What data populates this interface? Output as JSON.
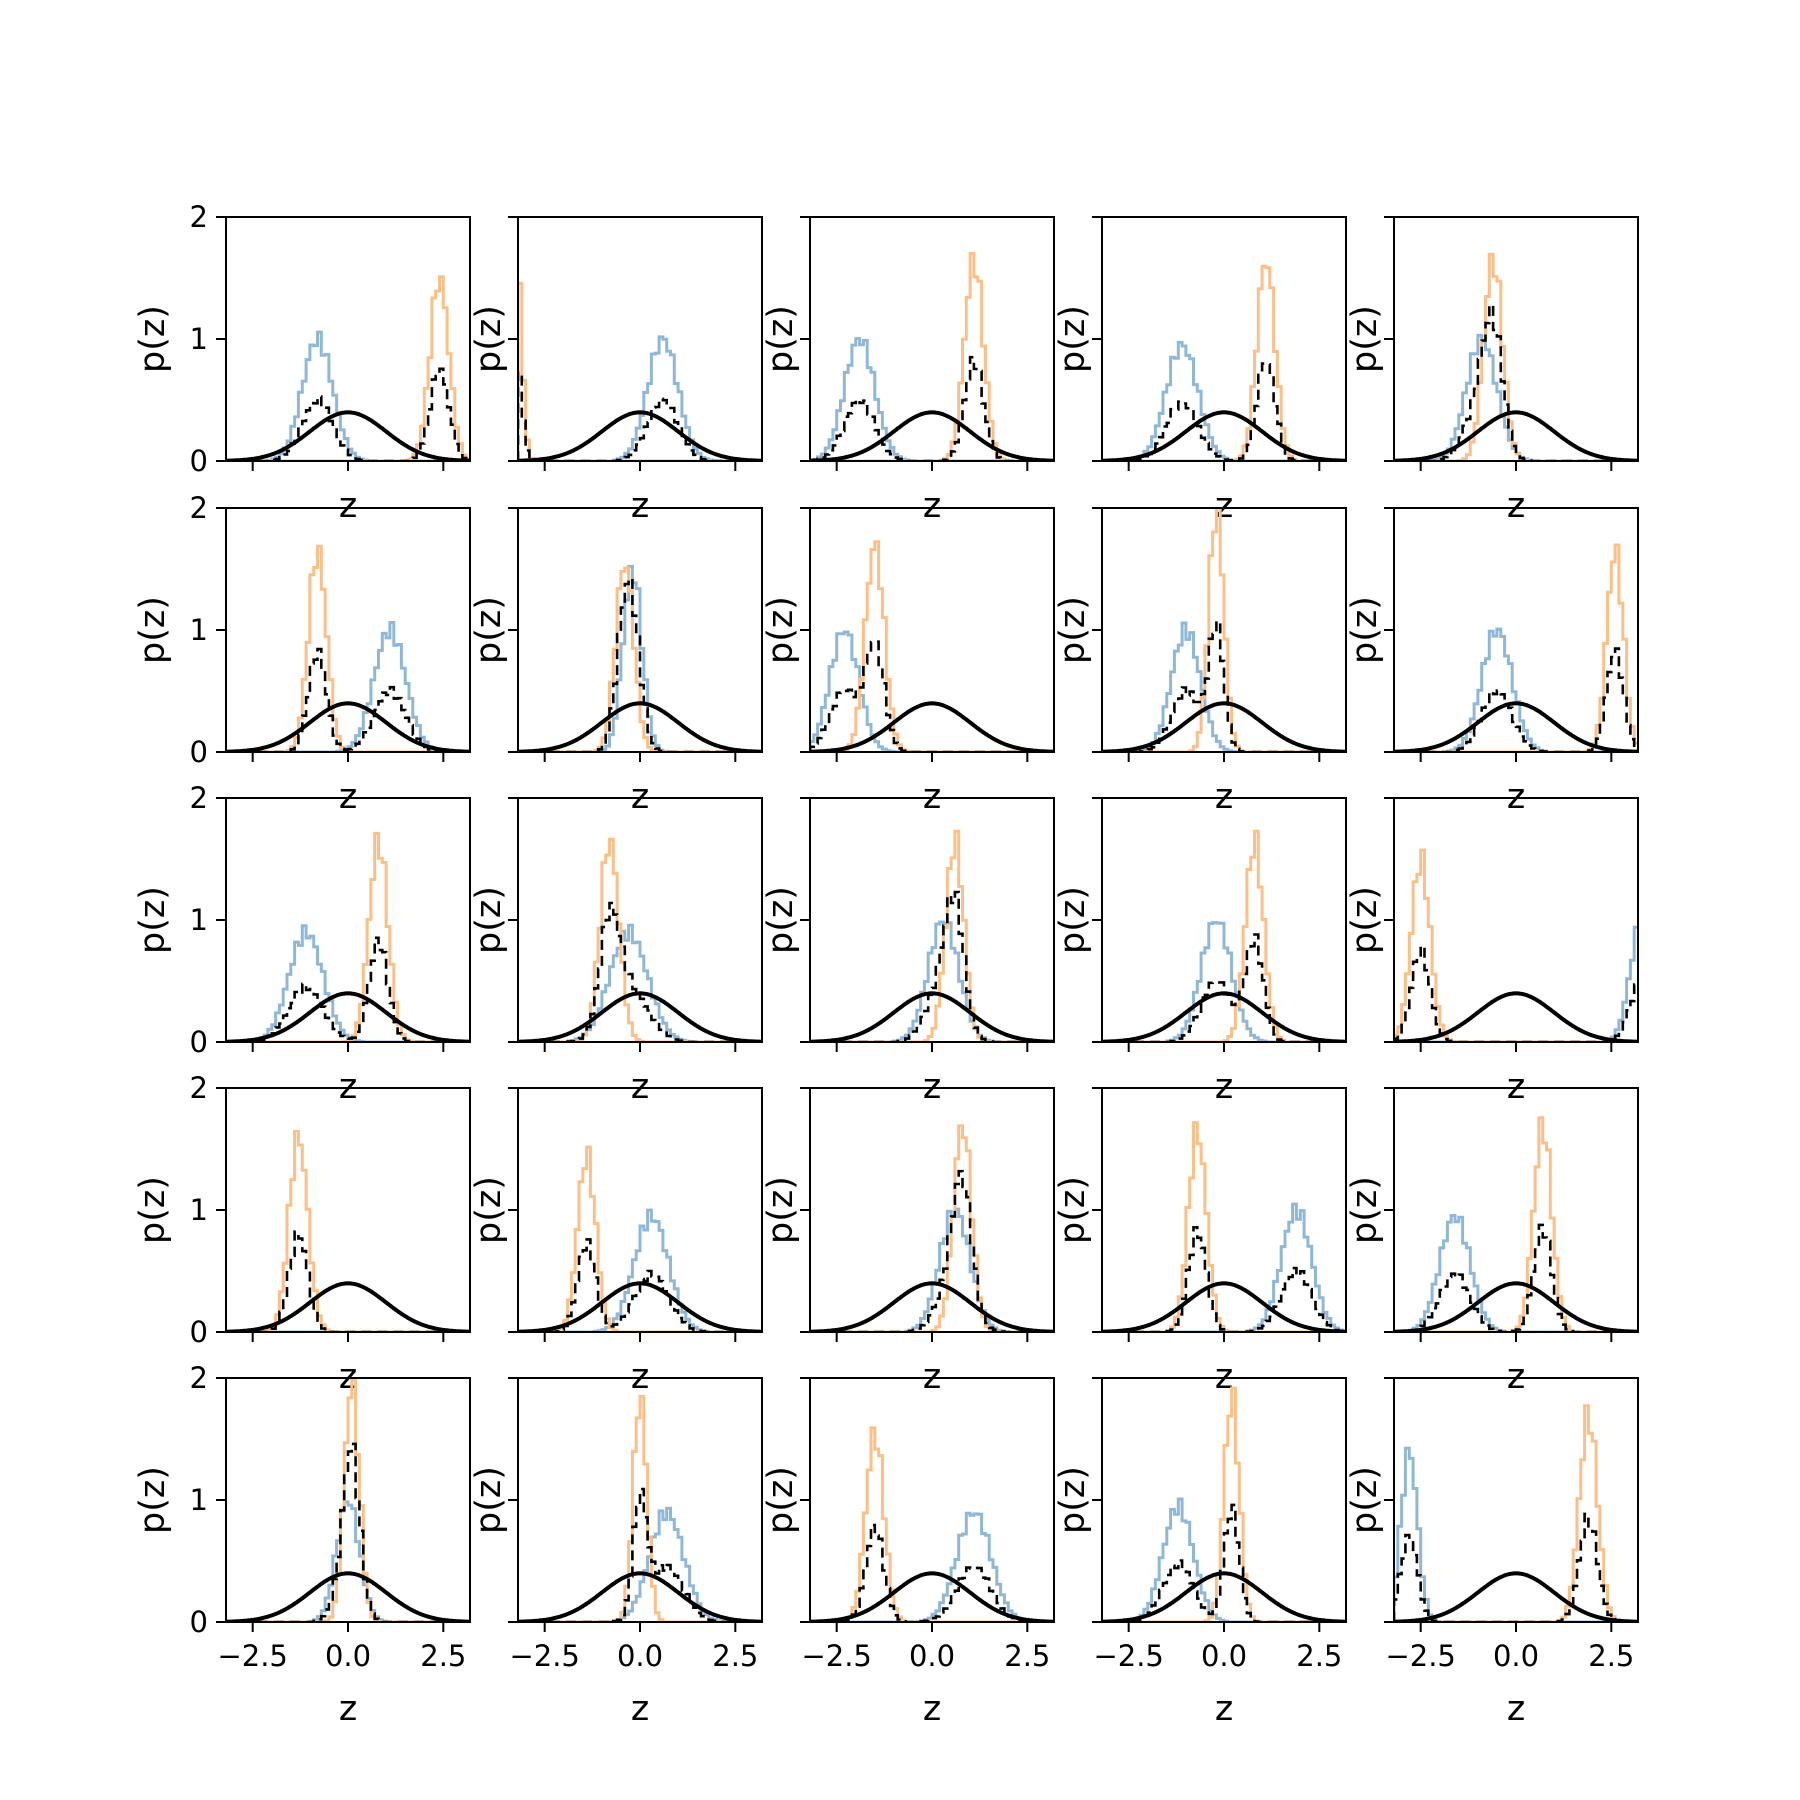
{
  "chart_data": {
    "type": "line",
    "grid_rows": 5,
    "grid_cols": 5,
    "xlabel": "z",
    "ylabel": "p(z)",
    "xlim": [
      -3.2,
      3.2
    ],
    "ylim": [
      0,
      2
    ],
    "xticks": [
      -2.5,
      0.0,
      2.5
    ],
    "xtick_labels": [
      "−2.5",
      "0.0",
      "2.5"
    ],
    "yticks": [
      0,
      1,
      2
    ],
    "ytick_labels": [
      "0",
      "1",
      "2"
    ],
    "grid": false,
    "colors": {
      "series_a": "#8fb8d8",
      "series_b": "#fdbf86",
      "mixture": "#000000",
      "prior": "#000000"
    },
    "prior_curve": "standard normal N(0,1), peak 0.4 at z=0, solid black",
    "panels": [
      {
        "a": {
          "mu": -0.8,
          "sd": 0.4,
          "h": 1.0
        },
        "b": {
          "mu": 2.4,
          "sd": 0.25,
          "h": 1.5
        }
      },
      {
        "a": {
          "mu": 0.6,
          "sd": 0.4,
          "h": 1.0
        },
        "b": {
          "mu": -3.2,
          "sd": 0.12,
          "h": 1.5
        }
      },
      {
        "a": {
          "mu": -1.9,
          "sd": 0.4,
          "h": 1.0
        },
        "b": {
          "mu": 1.1,
          "sd": 0.25,
          "h": 1.65
        }
      },
      {
        "a": {
          "mu": -1.1,
          "sd": 0.42,
          "h": 0.95
        },
        "b": {
          "mu": 1.1,
          "sd": 0.24,
          "h": 1.65
        }
      },
      {
        "a": {
          "mu": -0.9,
          "sd": 0.4,
          "h": 1.0
        },
        "b": {
          "mu": -0.6,
          "sd": 0.25,
          "h": 1.65
        }
      },
      {
        "a": {
          "mu": 1.1,
          "sd": 0.42,
          "h": 1.0
        },
        "b": {
          "mu": -0.8,
          "sd": 0.24,
          "h": 1.65
        }
      },
      {
        "a": {
          "mu": -0.2,
          "sd": 0.25,
          "h": 1.5
        },
        "b": {
          "mu": -0.4,
          "sd": 0.24,
          "h": 1.55
        }
      },
      {
        "a": {
          "mu": -2.3,
          "sd": 0.38,
          "h": 1.0
        },
        "b": {
          "mu": -1.5,
          "sd": 0.25,
          "h": 1.7
        }
      },
      {
        "a": {
          "mu": -1.0,
          "sd": 0.38,
          "h": 1.0
        },
        "b": {
          "mu": -0.2,
          "sd": 0.2,
          "h": 2.0
        }
      },
      {
        "a": {
          "mu": -0.5,
          "sd": 0.4,
          "h": 1.0
        },
        "b": {
          "mu": 2.6,
          "sd": 0.22,
          "h": 1.65
        }
      },
      {
        "a": {
          "mu": -1.1,
          "sd": 0.45,
          "h": 0.9
        },
        "b": {
          "mu": 0.8,
          "sd": 0.25,
          "h": 1.65
        }
      },
      {
        "a": {
          "mu": -0.3,
          "sd": 0.5,
          "h": 0.9
        },
        "b": {
          "mu": -0.8,
          "sd": 0.25,
          "h": 1.65
        }
      },
      {
        "a": {
          "mu": 0.3,
          "sd": 0.4,
          "h": 1.0
        },
        "b": {
          "mu": 0.6,
          "sd": 0.24,
          "h": 1.65
        }
      },
      {
        "a": {
          "mu": -0.2,
          "sd": 0.4,
          "h": 1.0
        },
        "b": {
          "mu": 0.8,
          "sd": 0.24,
          "h": 1.65
        }
      },
      {
        "a": {
          "mu": 3.3,
          "sd": 0.3,
          "h": 1.0
        },
        "b": {
          "mu": -2.5,
          "sd": 0.25,
          "h": 1.5
        }
      },
      {
        "a": {
          "mu": -2.0,
          "sd": 0.35,
          "h": 0.0
        },
        "b": {
          "mu": -1.3,
          "sd": 0.25,
          "h": 1.6
        }
      },
      {
        "a": {
          "mu": 0.3,
          "sd": 0.45,
          "h": 0.95
        },
        "b": {
          "mu": -1.4,
          "sd": 0.24,
          "h": 1.45
        }
      },
      {
        "a": {
          "mu": 0.6,
          "sd": 0.4,
          "h": 1.0
        },
        "b": {
          "mu": 0.8,
          "sd": 0.24,
          "h": 1.7
        }
      },
      {
        "a": {
          "mu": 1.9,
          "sd": 0.4,
          "h": 1.0
        },
        "b": {
          "mu": -0.7,
          "sd": 0.24,
          "h": 1.65
        }
      },
      {
        "a": {
          "mu": -1.6,
          "sd": 0.4,
          "h": 0.95
        },
        "b": {
          "mu": 0.7,
          "sd": 0.24,
          "h": 1.7
        }
      },
      {
        "a": {
          "mu": 0.0,
          "sd": 0.3,
          "h": 1.0
        },
        "b": {
          "mu": 0.1,
          "sd": 0.2,
          "h": 1.95
        }
      },
      {
        "a": {
          "mu": 0.7,
          "sd": 0.45,
          "h": 0.9
        },
        "b": {
          "mu": 0.0,
          "sd": 0.18,
          "h": 1.85
        }
      },
      {
        "a": {
          "mu": 1.1,
          "sd": 0.45,
          "h": 0.9
        },
        "b": {
          "mu": -1.5,
          "sd": 0.24,
          "h": 1.55
        }
      },
      {
        "a": {
          "mu": -1.2,
          "sd": 0.4,
          "h": 0.95
        },
        "b": {
          "mu": 0.2,
          "sd": 0.2,
          "h": 1.85
        }
      },
      {
        "a": {
          "mu": -2.8,
          "sd": 0.22,
          "h": 1.4
        },
        "b": {
          "mu": 1.9,
          "sd": 0.24,
          "h": 1.7
        }
      }
    ]
  }
}
